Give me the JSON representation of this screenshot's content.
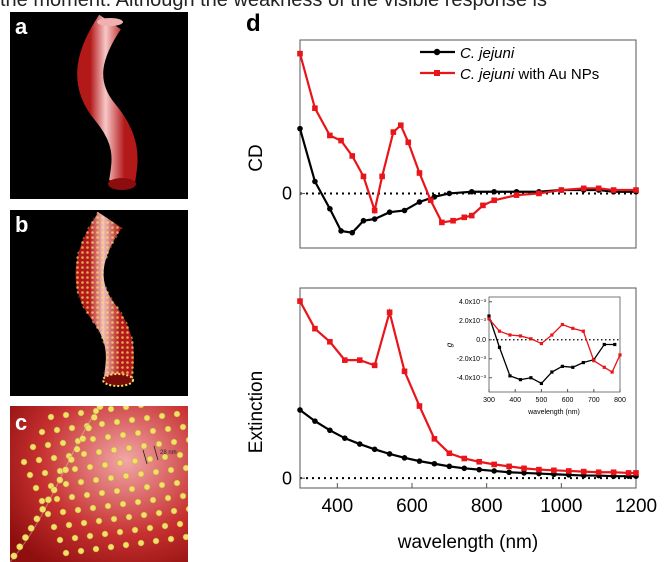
{
  "page": {
    "cut_text": "the moment. Although the weakness of the visible response is",
    "panel_labels": [
      "a",
      "b",
      "c",
      "d"
    ],
    "scale_bar_text": "28 nm"
  },
  "chart_data": [
    {
      "type": "line",
      "ylabel": "CD",
      "xlim": [
        300,
        1200
      ],
      "ylim": [
        -1.6,
        4.5
      ],
      "y_ticks": [
        0
      ],
      "y_tick_labels": [
        "0"
      ],
      "zero_line": "dotted",
      "legend": {
        "placement": "top-right",
        "entries": [
          {
            "italic": "C. jejuni",
            "rest": ""
          },
          {
            "italic": "C. jejuni",
            "rest": " with Au NPs"
          }
        ]
      },
      "series": [
        {
          "color": "#000000",
          "marker": "circle",
          "x": [
            300,
            340,
            380,
            410,
            440,
            470,
            500,
            540,
            580,
            620,
            660,
            700,
            760,
            820,
            880,
            940,
            1000,
            1060,
            1100,
            1140,
            1200
          ],
          "y": [
            1.9,
            0.35,
            -0.45,
            -1.1,
            -1.15,
            -0.8,
            -0.75,
            -0.55,
            -0.5,
            -0.25,
            -0.1,
            0,
            0.05,
            0.05,
            0.05,
            0.05,
            0.1,
            0.1,
            0.1,
            0.05,
            0.05
          ]
        },
        {
          "color": "#e8151b",
          "marker": "square",
          "x": [
            300,
            340,
            380,
            410,
            440,
            470,
            500,
            520,
            550,
            570,
            590,
            620,
            650,
            680,
            710,
            740,
            760,
            790,
            820,
            880,
            940,
            1000,
            1060,
            1100,
            1140,
            1200
          ],
          "y": [
            4.1,
            2.5,
            1.7,
            1.55,
            1.1,
            0.5,
            -0.5,
            0.5,
            1.8,
            2.0,
            1.5,
            0.6,
            -0.2,
            -0.85,
            -0.8,
            -0.7,
            -0.65,
            -0.35,
            -0.2,
            -0.05,
            0,
            0.1,
            0.15,
            0.15,
            0.1,
            0.1
          ]
        }
      ]
    },
    {
      "type": "line",
      "ylabel": "Extinction",
      "xlabel": "wavelength (nm)",
      "xlim": [
        300,
        1200
      ],
      "ylim": [
        -0.15,
        2.9
      ],
      "x_ticks": [
        400,
        600,
        800,
        1000,
        1200
      ],
      "y_ticks": [
        0
      ],
      "y_tick_labels": [
        "0"
      ],
      "zero_line": "dotted",
      "series": [
        {
          "color": "#000000",
          "marker": "circle",
          "x": [
            300,
            340,
            380,
            420,
            460,
            500,
            540,
            580,
            620,
            660,
            700,
            740,
            780,
            820,
            860,
            900,
            940,
            980,
            1020,
            1060,
            1100,
            1140,
            1180,
            1200
          ],
          "y": [
            1.04,
            0.87,
            0.73,
            0.61,
            0.52,
            0.44,
            0.37,
            0.31,
            0.26,
            0.22,
            0.18,
            0.15,
            0.13,
            0.11,
            0.09,
            0.08,
            0.07,
            0.06,
            0.05,
            0.04,
            0.04,
            0.03,
            0.03,
            0.03
          ]
        },
        {
          "color": "#e8151b",
          "marker": "square",
          "x": [
            300,
            340,
            380,
            420,
            460,
            500,
            540,
            580,
            620,
            660,
            700,
            740,
            780,
            820,
            860,
            900,
            940,
            980,
            1020,
            1060,
            1100,
            1140,
            1180,
            1200
          ],
          "y": [
            2.7,
            2.28,
            2.08,
            1.8,
            1.8,
            1.72,
            2.53,
            1.63,
            1.1,
            0.6,
            0.38,
            0.3,
            0.25,
            0.21,
            0.18,
            0.15,
            0.13,
            0.12,
            0.11,
            0.1,
            0.09,
            0.09,
            0.08,
            0.08
          ]
        }
      ]
    },
    {
      "type": "line",
      "ylabel": "g",
      "xlabel": "wavelength (nm)",
      "xlim": [
        300,
        800
      ],
      "ylim": [
        -0.0055,
        0.0045
      ],
      "x_ticks": [
        300,
        400,
        500,
        600,
        700,
        800
      ],
      "y_ticks": [
        -0.004,
        -0.002,
        0,
        0.002,
        0.004
      ],
      "y_tick_labels": [
        "-4.0x10⁻³",
        "-2.0x10⁻³",
        "0.0",
        "2.0x10⁻³",
        "4.0x10⁻³"
      ],
      "zero_line": "dotted",
      "series": [
        {
          "color": "#000000",
          "marker": "square",
          "x": [
            300,
            340,
            380,
            420,
            460,
            500,
            540,
            580,
            620,
            660,
            700,
            740,
            780
          ],
          "y": [
            0.0025,
            -0.0008,
            -0.0038,
            -0.0042,
            -0.004,
            -0.0046,
            -0.0034,
            -0.0028,
            -0.0029,
            -0.0024,
            -0.0021,
            -0.0005,
            -0.0005
          ]
        },
        {
          "color": "#e8151b",
          "marker": "square",
          "x": [
            300,
            340,
            380,
            420,
            460,
            500,
            540,
            580,
            620,
            660,
            700,
            740,
            770,
            800
          ],
          "y": [
            0.0022,
            0.0009,
            0.0005,
            0.0004,
            0.0001,
            -0.0004,
            0.0005,
            0.0016,
            0.0012,
            0.0009,
            -0.0022,
            -0.0029,
            -0.0034,
            -0.0016
          ]
        }
      ]
    }
  ]
}
